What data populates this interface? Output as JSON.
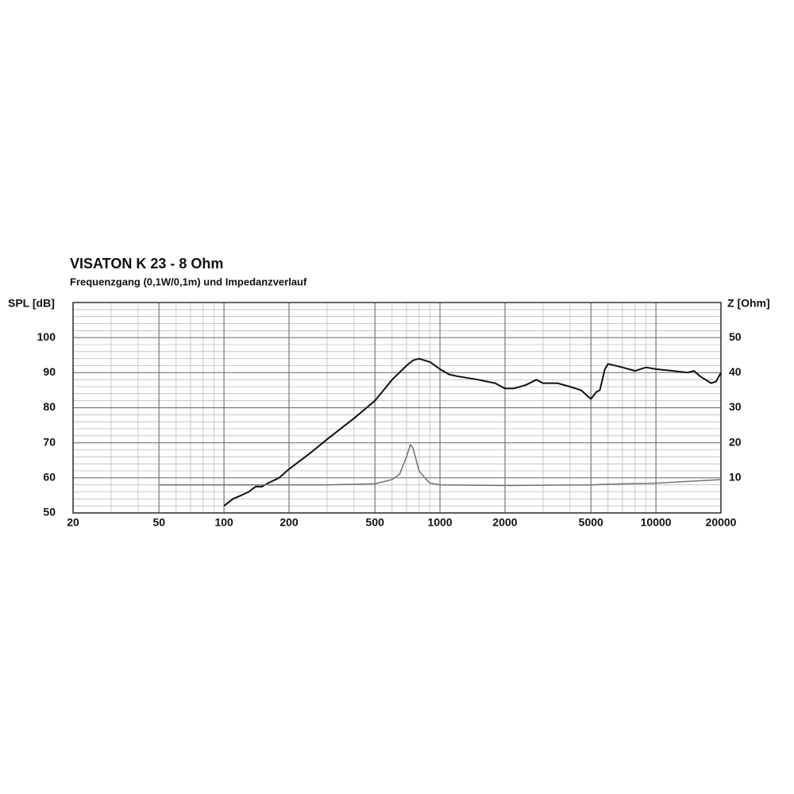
{
  "chart_data": {
    "type": "line",
    "title": "VISATON K 23 - 8 Ohm",
    "subtitle": "Frequenzgang (0,1W/0,1m) und Impedanzverlauf",
    "ylabel": "SPL [dB]",
    "y2label": "Z [Ohm]",
    "xscale": "log",
    "grid": true,
    "xlim": [
      20,
      20000
    ],
    "xticks": [
      20,
      50,
      100,
      200,
      500,
      1000,
      2000,
      5000,
      10000,
      20000
    ],
    "xminorticks": [
      30,
      40,
      60,
      70,
      80,
      90,
      300,
      400,
      600,
      700,
      800,
      900,
      3000,
      4000,
      6000,
      7000,
      8000,
      9000
    ],
    "ylim": [
      50,
      110
    ],
    "yticks": [
      50,
      60,
      70,
      80,
      90,
      100
    ],
    "yminorticks": [
      52,
      54,
      56,
      58,
      62,
      64,
      66,
      68,
      72,
      74,
      76,
      78,
      82,
      84,
      86,
      88,
      92,
      94,
      96,
      98,
      102,
      104,
      106,
      108
    ],
    "y2lim": [
      0,
      60
    ],
    "y2ticks": [
      10,
      20,
      30,
      40,
      50
    ],
    "series": [
      {
        "name": "SPL",
        "color": "#111111",
        "x": [
          100,
          110,
          120,
          130,
          140,
          150,
          160,
          180,
          200,
          250,
          300,
          400,
          500,
          600,
          700,
          750,
          800,
          900,
          1000,
          1100,
          1200,
          1500,
          1800,
          2000,
          2200,
          2500,
          2800,
          3000,
          3500,
          4000,
          4500,
          5000,
          5300,
          5500,
          5800,
          6000,
          7000,
          8000,
          9000,
          10000,
          12000,
          14000,
          15000,
          16000,
          18000,
          19000,
          20000
        ],
        "values": [
          52,
          54,
          55,
          56,
          57.5,
          57.5,
          58.5,
          60,
          62.5,
          67,
          71,
          77,
          82,
          88,
          92,
          93.5,
          94,
          93,
          91,
          89.5,
          89,
          88,
          87,
          85.5,
          85.5,
          86.5,
          88,
          87,
          87,
          86,
          85,
          82.5,
          84.5,
          85,
          91,
          92.5,
          91.5,
          90.5,
          91.5,
          91,
          90.5,
          90,
          90.5,
          89,
          87,
          87.5,
          90
        ]
      },
      {
        "name": "Z",
        "color": "#777777",
        "axis": "y2",
        "x": [
          50,
          100,
          300,
          500,
          600,
          650,
          700,
          730,
          750,
          800,
          850,
          900,
          1000,
          2000,
          5000,
          6000,
          10000,
          20000
        ],
        "values": [
          8,
          8,
          8,
          8.3,
          9.5,
          11,
          16,
          19.5,
          18.5,
          12,
          10,
          8.5,
          8,
          7.8,
          8,
          8.2,
          8.5,
          9.5
        ]
      }
    ]
  }
}
